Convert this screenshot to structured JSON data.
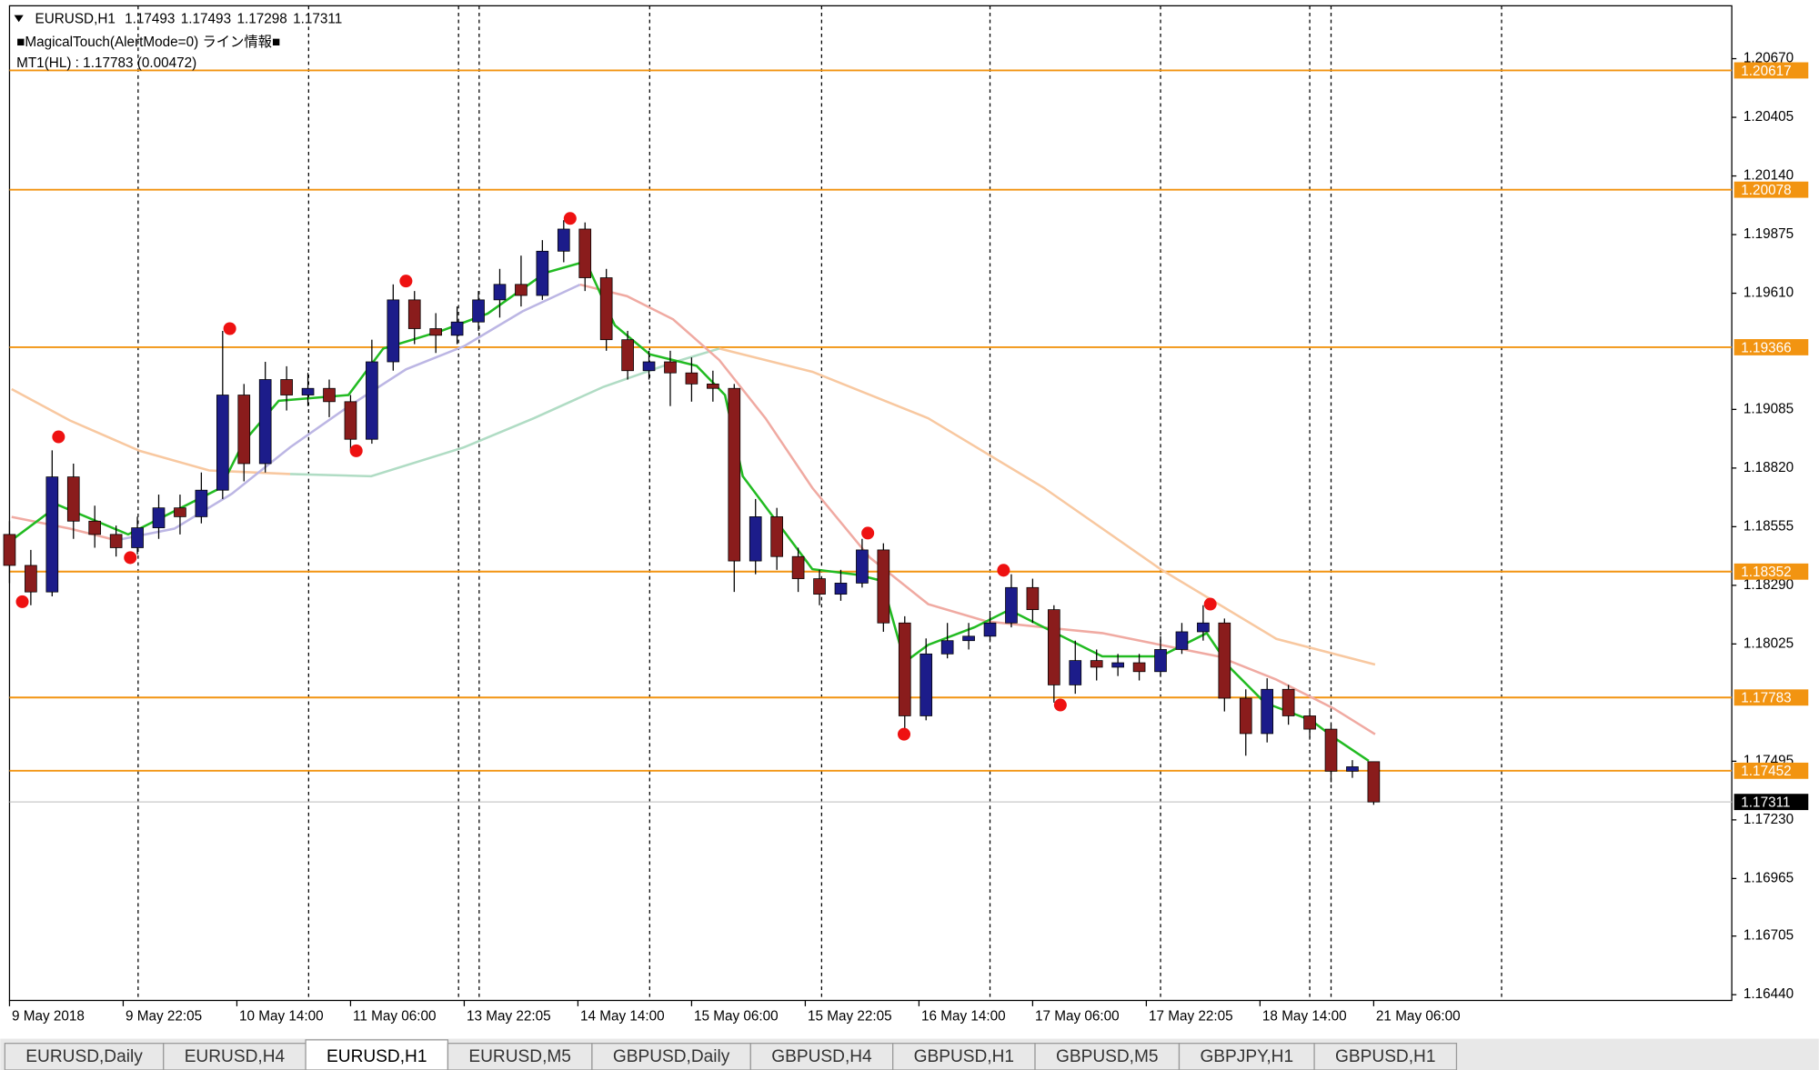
{
  "header": {
    "symbol": "EURUSD,H1",
    "ohlc": [
      1.17493,
      1.17493,
      1.17298,
      1.17311
    ],
    "indicator": "■MagicalTouch(AlertMode=0) ライン情報■",
    "mt1": "MT1(HL) : 1.17783 (0.00472)"
  },
  "chart_data": {
    "type": "candlestick",
    "xlim": [
      0,
      242.4
    ],
    "ylim": [
      1.16414,
      1.20909
    ],
    "xticks": [
      {
        "value": 0,
        "label": "9 May 2018"
      },
      {
        "value": 16,
        "label": "9 May 22:05"
      },
      {
        "value": 32,
        "label": "10 May 14:00"
      },
      {
        "value": 48,
        "label": "11 May 06:00"
      },
      {
        "value": 64,
        "label": "13 May 22:05"
      },
      {
        "value": 80,
        "label": "14 May 14:00"
      },
      {
        "value": 96,
        "label": "15 May 06:00"
      },
      {
        "value": 112,
        "label": "15 May 22:05"
      },
      {
        "value": 128,
        "label": "16 May 14:00"
      },
      {
        "value": 144,
        "label": "17 May 06:00"
      },
      {
        "value": 160,
        "label": "17 May 22:05"
      },
      {
        "value": 176,
        "label": "18 May 14:00"
      },
      {
        "value": 192,
        "label": "21 May 06:00"
      }
    ],
    "yticks": [
      {
        "value": 1.2067,
        "label": "1.20670"
      },
      1.20405,
      {
        "value": 1.2014,
        "label": "1.20140"
      },
      1.19875,
      {
        "value": 1.1961,
        "label": "1.19610"
      },
      1.19085,
      {
        "value": 1.1882,
        "label": "1.18820"
      },
      1.18555,
      {
        "value": 1.1829,
        "label": "1.18290"
      },
      1.18025,
      1.17495,
      {
        "value": 1.1723,
        "label": "1.17230"
      },
      1.16965,
      1.16705,
      {
        "value": 1.1644,
        "label": "1.16440"
      }
    ],
    "separators": [
      18.1,
      42.1,
      63.2,
      66.1,
      90.1,
      114.3,
      138,
      162,
      183,
      186,
      210
    ],
    "up_color": "#1c1c8a",
    "down_color": "#8a1c1c",
    "candles": {
      "x": [
        0,
        3,
        6,
        9,
        12,
        15,
        18,
        21,
        24,
        27,
        30,
        33,
        36,
        39,
        42,
        45,
        48,
        51,
        54,
        57,
        60,
        63,
        66,
        69,
        72,
        75,
        78,
        81,
        84,
        87,
        90,
        93,
        96,
        99,
        102,
        105,
        108,
        111,
        114,
        117,
        120,
        123,
        126,
        129,
        132,
        135,
        138,
        141,
        144,
        147,
        150,
        153,
        156,
        159,
        162,
        165,
        168,
        171,
        174,
        177,
        180,
        183,
        186,
        189,
        192
      ],
      "open": [
        1.1852,
        1.1838,
        1.1826,
        1.1878,
        1.1858,
        1.1852,
        1.1846,
        1.1855,
        1.1864,
        1.186,
        1.1872,
        1.1915,
        1.1884,
        1.1922,
        1.1915,
        1.1918,
        1.1912,
        1.1895,
        1.193,
        1.1958,
        1.1945,
        1.1942,
        1.1948,
        1.1958,
        1.1965,
        1.196,
        1.198,
        1.199,
        1.1968,
        1.194,
        1.1926,
        1.193,
        1.1925,
        1.192,
        1.1918,
        1.184,
        1.186,
        1.1842,
        1.1832,
        1.1825,
        1.183,
        1.1845,
        1.1812,
        1.177,
        1.1798,
        1.1804,
        1.1806,
        1.1812,
        1.1828,
        1.1818,
        1.1784,
        1.1795,
        1.1792,
        1.1794,
        1.179,
        1.18,
        1.1808,
        1.1812,
        1.1778,
        1.1762,
        1.1782,
        1.177,
        1.1764,
        1.1745,
        1.17493
      ],
      "high": [
        1.1858,
        1.1845,
        1.189,
        1.1884,
        1.1865,
        1.1856,
        1.186,
        1.187,
        1.187,
        1.188,
        1.1944,
        1.192,
        1.193,
        1.1928,
        1.1925,
        1.1922,
        1.1915,
        1.194,
        1.1965,
        1.1962,
        1.1952,
        1.1955,
        1.1962,
        1.1972,
        1.1978,
        1.1985,
        1.1994,
        1.1993,
        1.1972,
        1.1944,
        1.1935,
        1.1935,
        1.1932,
        1.1926,
        1.192,
        1.1868,
        1.1864,
        1.1846,
        1.1836,
        1.1836,
        1.185,
        1.1848,
        1.1815,
        1.1805,
        1.1812,
        1.1812,
        1.1816,
        1.1834,
        1.1832,
        1.182,
        1.1804,
        1.18,
        1.1798,
        1.1798,
        1.1806,
        1.1812,
        1.182,
        1.1814,
        1.1782,
        1.1787,
        1.1784,
        1.1772,
        1.1766,
        1.175,
        1.17493
      ],
      "low": [
        1.183,
        1.182,
        1.1824,
        1.185,
        1.1846,
        1.1842,
        1.1843,
        1.185,
        1.1852,
        1.1857,
        1.1868,
        1.1876,
        1.188,
        1.1908,
        1.191,
        1.1905,
        1.189,
        1.1893,
        1.1926,
        1.1938,
        1.1934,
        1.1938,
        1.1944,
        1.195,
        1.1955,
        1.1958,
        1.1975,
        1.1962,
        1.1935,
        1.1922,
        1.1922,
        1.191,
        1.1912,
        1.1912,
        1.1826,
        1.1834,
        1.1836,
        1.1826,
        1.182,
        1.1822,
        1.1828,
        1.1808,
        1.1762,
        1.1768,
        1.1796,
        1.18,
        1.1804,
        1.181,
        1.1812,
        1.1776,
        1.178,
        1.1786,
        1.1788,
        1.1786,
        1.1788,
        1.1798,
        1.1804,
        1.1772,
        1.1752,
        1.1758,
        1.1766,
        1.176,
        1.174,
        1.1742,
        1.17298
      ],
      "close": [
        1.1838,
        1.1826,
        1.1878,
        1.1858,
        1.1852,
        1.1846,
        1.1855,
        1.1864,
        1.186,
        1.1872,
        1.1915,
        1.1884,
        1.1922,
        1.1915,
        1.1918,
        1.1912,
        1.1895,
        1.193,
        1.1958,
        1.1945,
        1.1942,
        1.1948,
        1.1958,
        1.1965,
        1.196,
        1.198,
        1.199,
        1.1968,
        1.194,
        1.1926,
        1.193,
        1.1925,
        1.192,
        1.1918,
        1.184,
        1.186,
        1.1842,
        1.1832,
        1.1825,
        1.183,
        1.1845,
        1.1812,
        1.177,
        1.1798,
        1.1804,
        1.1806,
        1.1812,
        1.1828,
        1.1818,
        1.1784,
        1.1795,
        1.1792,
        1.1794,
        1.179,
        1.18,
        1.1808,
        1.1812,
        1.1778,
        1.1762,
        1.1782,
        1.177,
        1.1764,
        1.1745,
        1.1747,
        1.17311
      ]
    },
    "series": [
      {
        "color": "#f8c8a0",
        "x": [
          0.3,
          8.5,
          18.3,
          28.1,
          39.5
        ],
        "values": [
          1.19177,
          1.19035,
          1.18898,
          1.18809,
          1.18793
        ]
      },
      {
        "color": "#b0dcc4",
        "x": [
          39.5,
          50.9,
          64,
          73.8,
          83.6,
          93.4,
          99.9
        ],
        "values": [
          1.18793,
          1.18783,
          1.18914,
          1.19045,
          1.19187,
          1.19297,
          1.1936
        ]
      },
      {
        "color": "#f8c8a0",
        "x": [
          99.9,
          113,
          129.3,
          145.6,
          162,
          178.3,
          192.2
        ],
        "values": [
          1.1936,
          1.19255,
          1.19045,
          1.1873,
          1.18363,
          1.18048,
          1.17932
        ]
      },
      {
        "color": "#f0aaa2",
        "x": [
          0.3,
          8.5,
          15
        ],
        "values": [
          1.18599,
          1.18546,
          1.18494
        ]
      },
      {
        "color": "#bcb6e4",
        "x": [
          15,
          23.2,
          31.3,
          39.5,
          47.7,
          55.8,
          64,
          72.2,
          80.3
        ],
        "values": [
          1.18494,
          1.18546,
          1.18704,
          1.18914,
          1.19098,
          1.19266,
          1.19371,
          1.19528,
          1.19649
        ]
      },
      {
        "color": "#f0aaa2",
        "x": [
          80.3,
          86.9,
          93.4,
          99.9,
          106.4,
          113,
          121.1,
          129.3,
          137.5,
          145.6,
          153.8,
          162,
          170.1,
          178.3,
          186.4,
          192.2
        ],
        "values": [
          1.19649,
          1.19597,
          1.19492,
          1.19308,
          1.19045,
          1.1873,
          1.18415,
          1.18205,
          1.18127,
          1.181,
          1.18074,
          1.18021,
          1.17969,
          1.17864,
          1.17733,
          1.17617
        ]
      },
      {
        "color": "#22bb22",
        "x": [
          0.3,
          6.9,
          16.7,
          23.2,
          29.7,
          33,
          37.9,
          47.7,
          52.6,
          60.7,
          67.3,
          75.4,
          81.1,
          85.2,
          90.1,
          96.7,
          100.7,
          103.2,
          108.1,
          113,
          119.5,
          122.8,
          126,
          129.3,
          135.8,
          140.7,
          145.6,
          153.8,
          162,
          168.5,
          171.8,
          176.7,
          183.2,
          186.4,
          191.3
        ],
        "values": [
          1.18494,
          1.18652,
          1.1852,
          1.18625,
          1.1873,
          1.1894,
          1.19124,
          1.1915,
          1.1936,
          1.19439,
          1.19518,
          1.19702,
          1.19754,
          1.19465,
          1.19334,
          1.19282,
          1.1915,
          1.18783,
          1.18573,
          1.18363,
          1.18337,
          1.1831,
          1.17943,
          1.18021,
          1.181,
          1.18179,
          1.181,
          1.17969,
          1.17969,
          1.18074,
          1.17917,
          1.17759,
          1.1768,
          1.17602,
          1.17497
        ]
      }
    ],
    "markers": {
      "color": "#ee1111",
      "x": [
        1.8,
        6.9,
        17,
        31,
        48.8,
        55.8,
        78.9,
        120.8,
        125.9,
        139.9,
        147.9,
        169
      ],
      "y": [
        1.18216,
        1.18961,
        1.18415,
        1.1945,
        1.18898,
        1.19665,
        1.19948,
        1.18526,
        1.17617,
        1.18358,
        1.17749,
        1.18205
      ]
    },
    "levels": {
      "color": "#f29411",
      "values": [
        1.20617,
        1.20078,
        1.19366,
        1.18352,
        1.17783,
        1.17452
      ]
    },
    "last_price": 1.17311
  },
  "tabs": {
    "items": [
      "EURUSD,Daily",
      "EURUSD,H4",
      "EURUSD,H1",
      "EURUSD,M5",
      "GBPUSD,Daily",
      "GBPUSD,H4",
      "GBPUSD,H1",
      "GBPUSD,M5",
      "GBPJPY,H1",
      "GBPUSD,H1"
    ],
    "active": 2
  }
}
